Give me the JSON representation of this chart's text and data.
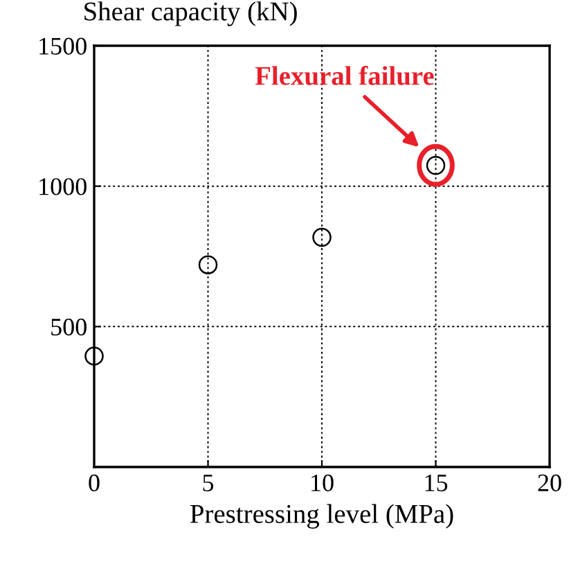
{
  "chart_data": {
    "type": "scatter",
    "xlabel": "Prestressing level (MPa)",
    "ylabel": "Shear capacity (kN)",
    "x": [
      0,
      5,
      10,
      15
    ],
    "values": [
      395,
      720,
      818,
      1074
    ],
    "color": "#000000",
    "marker": "circle",
    "grid": true,
    "xlim": [
      0,
      20
    ],
    "ylim": [
      0,
      1500
    ],
    "xticks": [
      0,
      5,
      10,
      15,
      20
    ],
    "yticks": [
      500,
      1000,
      1500
    ],
    "annotations": [
      {
        "text": "Flexural failure",
        "x": 15,
        "y": 1074
      }
    ]
  }
}
